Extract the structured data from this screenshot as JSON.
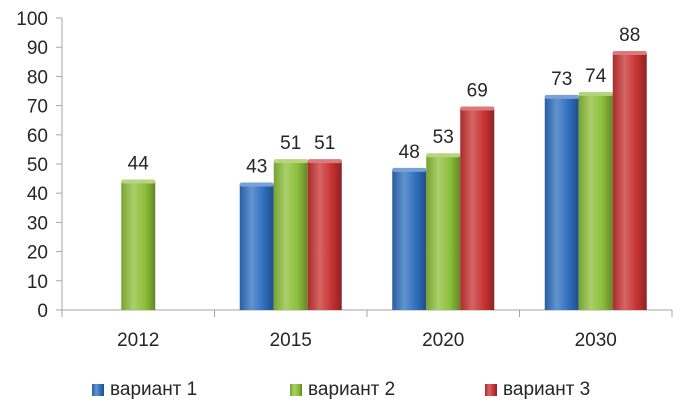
{
  "chart_data": {
    "type": "bar",
    "categories": [
      "2012",
      "2015",
      "2020",
      "2030"
    ],
    "series": [
      {
        "name": "вариант 1",
        "values": [
          null,
          43,
          48,
          73
        ]
      },
      {
        "name": "вариант 2",
        "values": [
          44,
          51,
          53,
          74
        ]
      },
      {
        "name": "вариант 3",
        "values": [
          null,
          51,
          69,
          88
        ]
      }
    ],
    "ylim": [
      0,
      100
    ],
    "yticks": [
      "0",
      "10",
      "20",
      "30",
      "40",
      "50",
      "60",
      "70",
      "80",
      "90",
      "100"
    ],
    "grid": false,
    "legend_position": "bottom",
    "colors": [
      "#2f6fbf",
      "#8dbf3a",
      "#c83232"
    ]
  }
}
